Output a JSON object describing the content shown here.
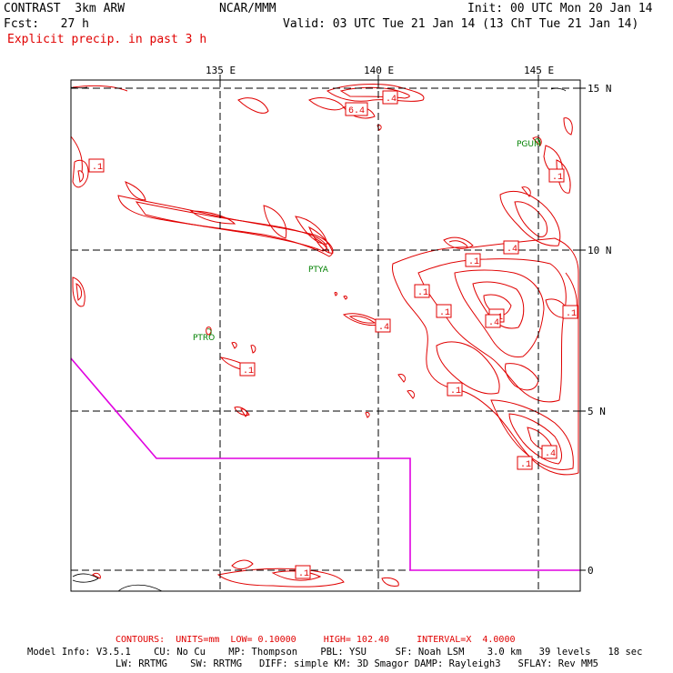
{
  "header": {
    "model": "CONTRAST  3km ARW",
    "center": "NCAR/MMM",
    "init": "Init: 00 UTC Mon 20 Jan 14",
    "fcst": "Fcst:   27 h",
    "valid": "Valid: 03 UTC Tue 21 Jan 14 (13 ChT Tue 21 Jan 14)",
    "field": "Explicit precip. in past 3 h"
  },
  "map": {
    "lon_labels": [
      "135 E",
      "140 E",
      "145 E"
    ],
    "lat_labels": [
      "15 N",
      "10 N",
      "5 N",
      "0"
    ],
    "stations": [
      "PGUM",
      "PTYA",
      "PTRO"
    ],
    "contour_labels": [
      ".4",
      "6.4",
      ".1",
      ".1",
      ".4",
      ".1",
      ".1",
      ".1",
      ".4",
      ".1",
      ".1",
      ".1",
      ".1",
      ".1",
      ".4",
      ".1",
      ".4"
    ],
    "colors": {
      "contour": "#e00000",
      "boundary": "#e000e0",
      "station": "#008000",
      "grid": "#000000"
    }
  },
  "footer": {
    "contours": "CONTOURS:  UNITS=mm  LOW= 0.10000     HIGH= 102.40     INTERVAL=X  4.0000",
    "model_info_1": "Model Info: V3.5.1    CU: No Cu    MP: Thompson    PBL: YSU     SF: Noah LSM    3.0 km   39 levels   18 sec",
    "model_info_2": "LW: RRTMG    SW: RRTMG   DIFF: simple KM: 3D Smagor DAMP: Rayleigh3   SFLAY: Rev MM5"
  }
}
